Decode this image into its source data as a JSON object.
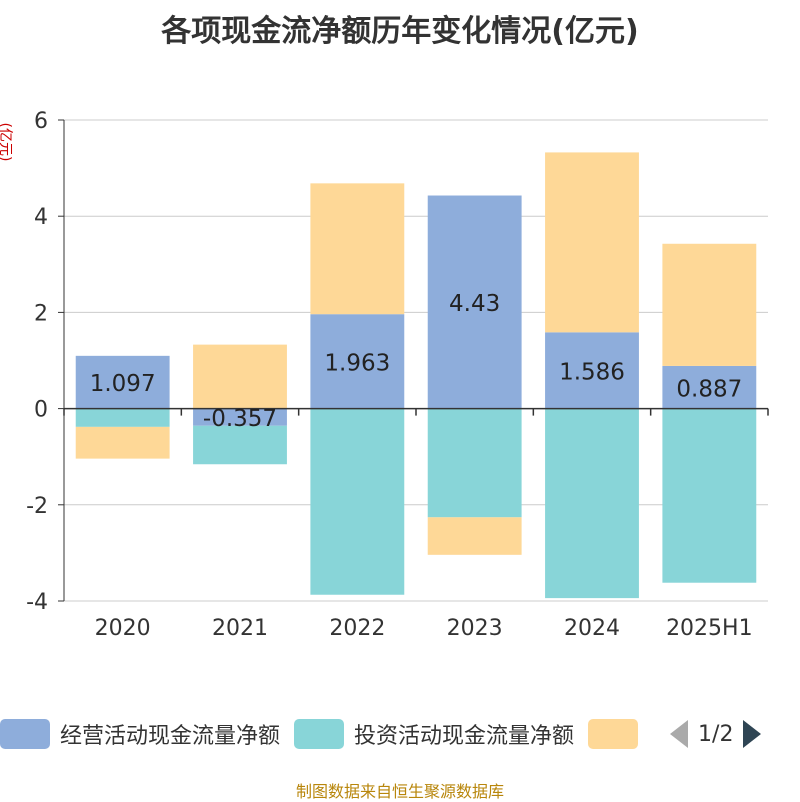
{
  "chart_data": {
    "type": "bar",
    "title": "各项现金流净额历年变化情况(亿元)",
    "ylabel": "(亿元)",
    "categories": [
      "2020",
      "2021",
      "2022",
      "2023",
      "2024",
      "2025H1"
    ],
    "ylim": [
      -4,
      6
    ],
    "yticks": [
      -4,
      -2,
      0,
      2,
      4,
      6
    ],
    "grid": true,
    "stacked": true,
    "series": [
      {
        "name": "经营活动现金流量净额",
        "color": "#8eaddb",
        "values": [
          1.097,
          -0.357,
          1.963,
          4.43,
          1.586,
          0.887
        ],
        "labels": [
          "1.097",
          "-0.357",
          "1.963",
          "4.43",
          "1.586",
          "0.887"
        ]
      },
      {
        "name": "投资活动现金流量净额",
        "color": "#88d5d8",
        "values": [
          -0.38,
          -0.8,
          -3.87,
          -2.26,
          -3.94,
          -3.62
        ]
      },
      {
        "name": "",
        "color": "#fed897",
        "values": [
          -0.66,
          1.33,
          2.72,
          -0.78,
          3.74,
          2.54
        ]
      }
    ],
    "legend_position": "bottom"
  },
  "legend": {
    "items": [
      {
        "label": "经营活动现金流量净额",
        "color": "#8eaddb"
      },
      {
        "label": "投资活动现金流量净额",
        "color": "#88d5d8"
      },
      {
        "label": "",
        "color": "#fed897"
      }
    ],
    "page": "1/2"
  },
  "source": "制图数据来自恒生聚源数据库"
}
